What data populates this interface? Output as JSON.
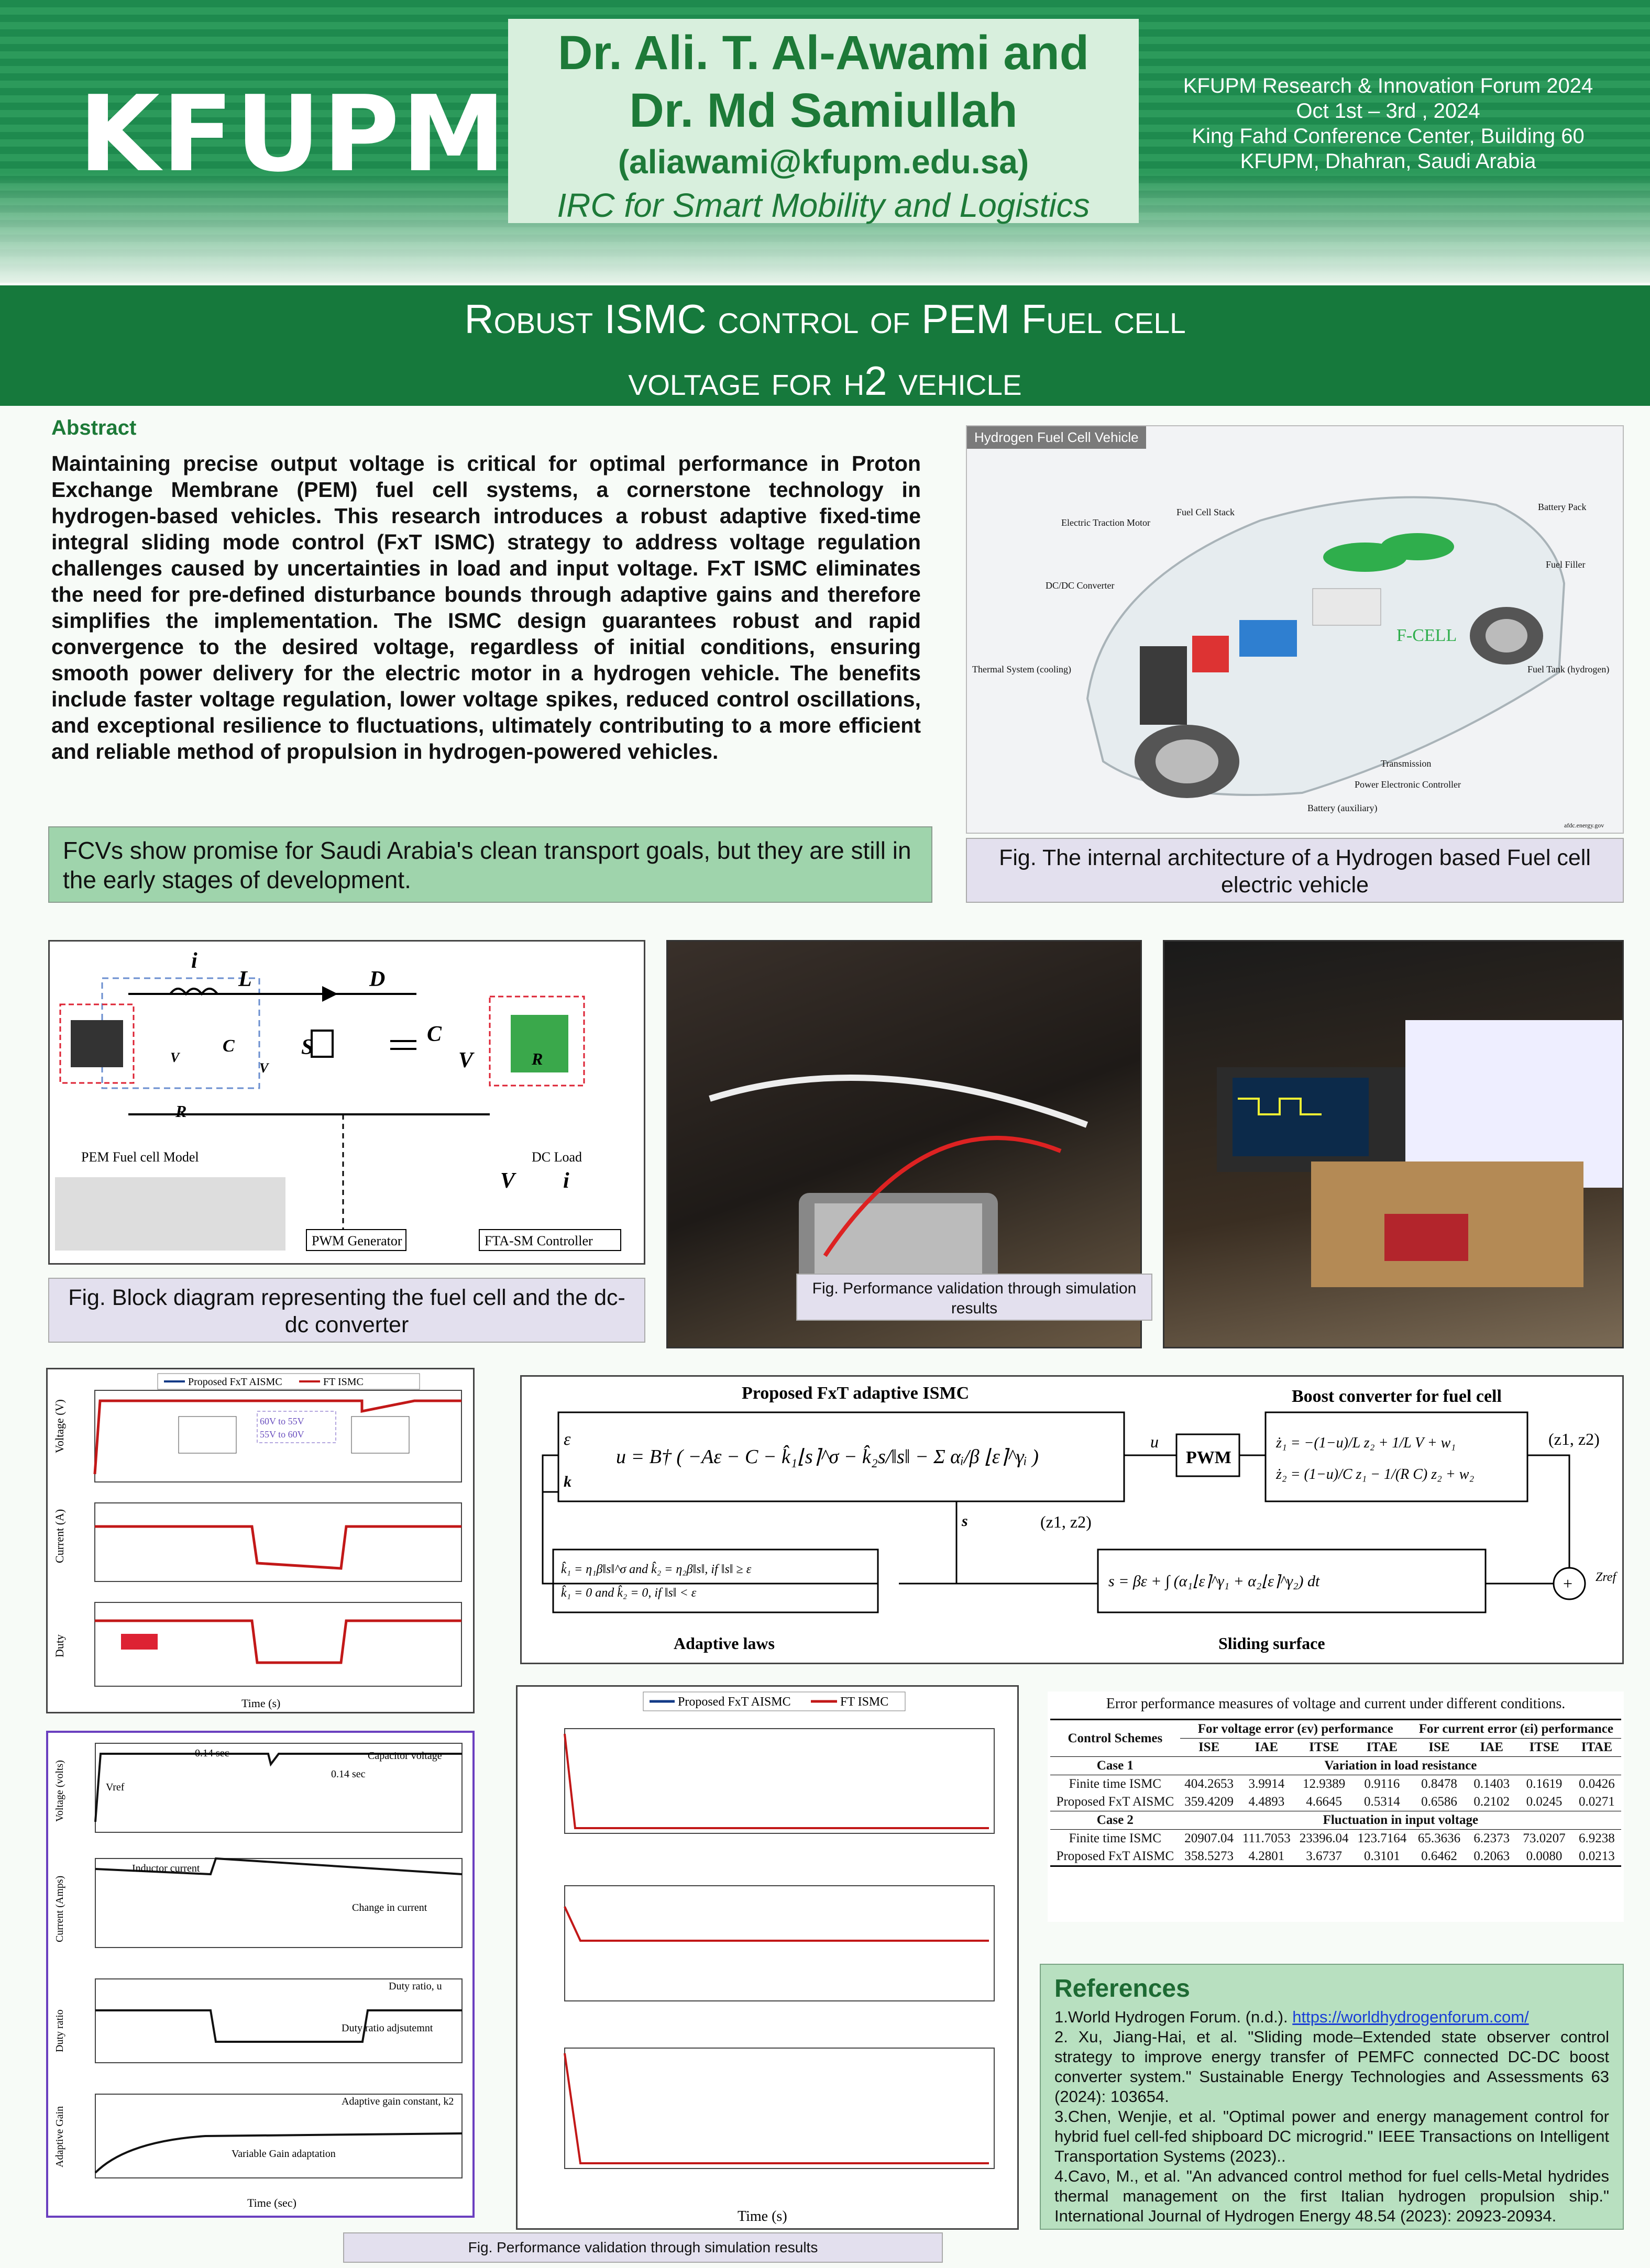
{
  "header": {
    "logo": "KFUPM",
    "author_line1": "Dr. Ali. T. Al-Awami and",
    "author_line2": "Dr. Md Samiullah",
    "email": "(aliawami@kfupm.edu.sa)",
    "org": "IRC for Smart Mobility and Logistics",
    "forum_line1": "KFUPM Research & Innovation Forum 2024",
    "forum_line2": "Oct 1st  – 3rd , 2024",
    "forum_line3": "King Fahd Conference Center, Building 60",
    "forum_line4": "KFUPM, Dhahran, Saudi Arabia"
  },
  "title": {
    "line1": "Robust ISMC control of PEM Fuel cell",
    "line2": "voltage for h2 vehicle"
  },
  "abstract": {
    "heading": "Abstract",
    "text": "Maintaining precise output voltage is critical for optimal performance in Proton Exchange Membrane (PEM) fuel cell systems, a cornerstone technology in hydrogen-based vehicles. This research introduces a robust adaptive fixed-time integral sliding mode control (FxT ISMC) strategy to address voltage regulation challenges caused by uncertainties in load and input voltage. FxT ISMC eliminates the need for pre-defined disturbance bounds through adaptive gains and therefore simplifies the implementation. The ISMC design guarantees robust and rapid convergence to the desired voltage, regardless of initial conditions, ensuring smooth power delivery for the electric motor in a hydrogen vehicle. The benefits include faster voltage regulation, lower voltage spikes, reduced control oscillations, and exceptional resilience to fluctuations, ultimately contributing to a more efficient and reliable method of propulsion in hydrogen-powered vehicles.",
    "note": "FCVs show promise for Saudi Arabia's clean transport goals, but they are still in the early stages of development."
  },
  "vehicle": {
    "tag": "Hydrogen Fuel Cell Vehicle",
    "labels": [
      "Electric Traction Motor",
      "Fuel Cell Stack",
      "Battery Pack",
      "Fuel Filler",
      "DC/DC Converter",
      "Thermal System (cooling)",
      "Fuel Tank (hydrogen)",
      "Transmission",
      "Power Electronic Controller",
      "Battery (auxiliary)",
      "afdc.energy.gov"
    ],
    "caption": "Fig. The internal architecture of a Hydrogen based Fuel cell electric vehicle"
  },
  "circuit": {
    "labels": {
      "ifc": "i",
      "L": "L",
      "D": "D",
      "Cf": "C",
      "vfc": "V",
      "rc": "R",
      "vpemfc": "V",
      "S": "S",
      "C": "C",
      "vo": "V",
      "rl": "R",
      "pem": "PEM Fuel cell Model",
      "dcload": "DC Load",
      "vo2": "V",
      "ifc2": "i",
      "pwm": "PWM Generator",
      "fta": "FTA-SM Controller"
    },
    "caption": "Fig. Block diagram representing the fuel cell and the dc-dc converter"
  },
  "photo_caption": "Fig. Performance validation through simulation results",
  "sim1": {
    "legend": [
      "Proposed FxT AISMC",
      "FT ISMC"
    ],
    "ylabels": [
      "Voltage (V)",
      "Current (A)",
      "Duty"
    ],
    "xlabel": "Time (s)",
    "annot": [
      "60V to 55V",
      "55V to 60V"
    ]
  },
  "control": {
    "title1": "Proposed FxT adaptive ISMC",
    "title2": "Boost converter for fuel cell",
    "pwm": "PWM",
    "adaptive": "Adaptive laws",
    "sliding": "Sliding surface",
    "u": "u",
    "eps": "ε",
    "k": "k",
    "s": "s",
    "z": "(z1, z2)",
    "zref": "Zref"
  },
  "sim2": {
    "labels": [
      "Capacitor voltage",
      "Inductor current",
      "Duty ratio, u",
      "Adaptive gain constant, k2"
    ],
    "ylabels": [
      "Voltage (volts)",
      "Current (Amps)",
      "Duty ratio",
      "Adaptive Gain"
    ],
    "annot": [
      "Vref",
      "0.14 sec",
      "0.14 sec",
      "Change in current",
      "Duty ratio adjsutemnt",
      "Variable Gain adaptation"
    ],
    "xlabel": "Time (sec)"
  },
  "sim3": {
    "legend": [
      "Proposed FxT AISMC",
      "FT ISMC"
    ],
    "xlabel": "Time (s)"
  },
  "table": {
    "title": "Error performance measures of voltage and current under different conditions.",
    "head1": [
      "Control Schemes",
      "For voltage error (εv) performance",
      "For current error (εi) performance"
    ],
    "head2": [
      "ISE",
      "IAE",
      "ITSE",
      "ITAE",
      "ISE",
      "IAE",
      "ITSE",
      "ITAE"
    ],
    "case1": "Case 1",
    "case1_desc": "Variation in load resistance",
    "case2": "Case 2",
    "case2_desc": "Fluctuation in input voltage",
    "rows1": [
      [
        "Finite time ISMC",
        "404.2653",
        "3.9914",
        "12.9389",
        "0.9116",
        "0.8478",
        "0.1403",
        "0.1619",
        "0.0426"
      ],
      [
        "Proposed FxT AISMC",
        "359.4209",
        "4.4893",
        "4.6645",
        "0.5314",
        "0.6586",
        "0.2102",
        "0.0245",
        "0.0271"
      ]
    ],
    "rows2": [
      [
        "Finite time ISMC",
        "20907.04",
        "111.7053",
        "23396.04",
        "123.7164",
        "65.3636",
        "6.2373",
        "73.0207",
        "6.9238"
      ],
      [
        "Proposed FxT AISMC",
        "358.5273",
        "4.2801",
        "3.6737",
        "0.3101",
        "0.6462",
        "0.2063",
        "0.0080",
        "0.0213"
      ]
    ]
  },
  "refs": {
    "title": "References",
    "r1a": "1.World Hydrogen Forum. (n.d.). ",
    "r1link": "https://worldhydrogenforum.com/",
    "r2": "2. Xu, Jiang-Hai, et al. \"Sliding mode–Extended state observer control strategy to improve energy transfer of PEMFC connected DC-DC boost converter system.\" Sustainable Energy Technologies and Assessments 63 (2024): 103654.",
    "r3": "3.Chen, Wenjie, et al. \"Optimal power and energy management control for hybrid fuel cell-fed shipboard DC microgrid.\" IEEE Transactions on Intelligent Transportation Systems (2023)..",
    "r4": "4.Cavo, M., et al. \"An advanced control method for fuel cells-Metal hydrides thermal management on the first Italian hydrogen propulsion ship.\" International Journal of Hydrogen Energy 48.54 (2023): 20923-20934."
  },
  "bottom_caption": "Fig. Performance validation through simulation results"
}
